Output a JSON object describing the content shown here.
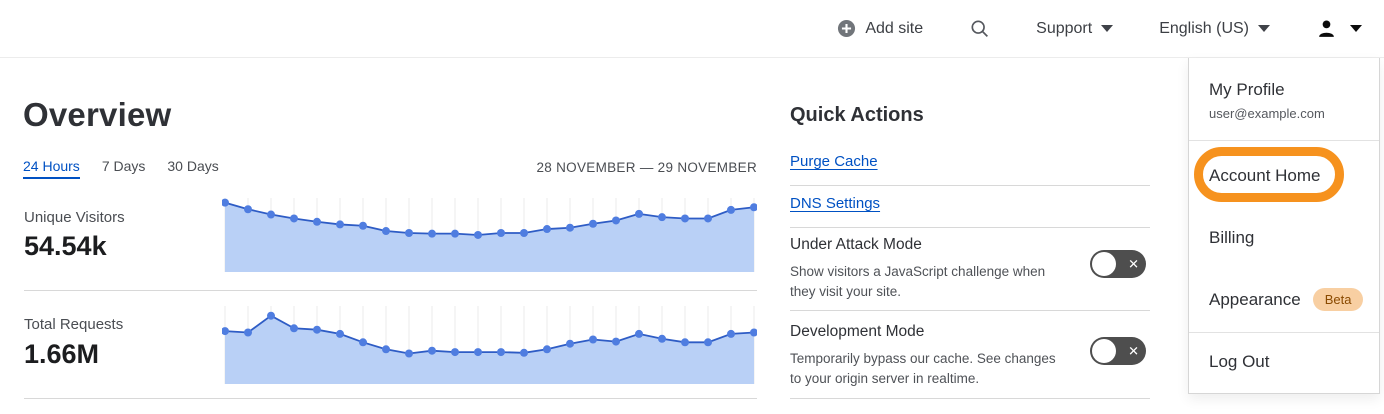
{
  "header": {
    "add_site": "Add site",
    "support": "Support",
    "language": "English (US)"
  },
  "overview": {
    "title": "Overview",
    "tabs": [
      {
        "label": "24 Hours",
        "active": true
      },
      {
        "label": "7 Days",
        "active": false
      },
      {
        "label": "30 Days",
        "active": false
      }
    ],
    "date_range": "28 NOVEMBER — 29 NOVEMBER",
    "metrics": [
      {
        "label": "Unique Visitors",
        "value": "54.54k"
      },
      {
        "label": "Total Requests",
        "value": "1.66M"
      }
    ]
  },
  "chart_data": [
    {
      "type": "area",
      "title": "Unique Visitors — 24 Hours",
      "series_label": "Unique Visitors",
      "summary_value": "54.54k",
      "x_axis": "24 hourly points, 28 November — 29 November (ticks hidden)",
      "y_axis": "hidden sparkline, relative scale 0-100",
      "values": [
        96,
        86,
        78,
        72,
        67,
        63,
        61,
        53,
        50,
        49,
        49,
        47,
        50,
        50,
        56,
        58,
        64,
        69,
        79,
        74,
        72,
        72,
        85,
        89
      ],
      "grid": "vertical-only",
      "legend": "none",
      "colors": {
        "fill": "#b9d0f6",
        "line": "#2e5cc5",
        "points": "#4f7de0",
        "grid": "#ebebeb"
      }
    },
    {
      "type": "area",
      "title": "Total Requests — 24 Hours",
      "series_label": "Total Requests",
      "summary_value": "1.66M",
      "x_axis": "24 hourly points, 28 November — 29 November (ticks hidden)",
      "y_axis": "hidden sparkline, relative scale 0-100",
      "values": [
        67,
        65,
        89,
        71,
        69,
        63,
        51,
        41,
        35,
        39,
        37,
        37,
        37,
        36,
        41,
        49,
        55,
        52,
        63,
        56,
        51,
        51,
        63,
        65
      ],
      "grid": "vertical-only",
      "legend": "none",
      "colors": {
        "fill": "#b9d0f6",
        "line": "#2e5cc5",
        "points": "#4f7de0",
        "grid": "#ebebeb"
      }
    }
  ],
  "quick_actions": {
    "title": "Quick Actions",
    "links": [
      {
        "label": "Purge Cache"
      },
      {
        "label": "DNS Settings"
      }
    ],
    "toggles": [
      {
        "label": "Under Attack Mode",
        "description": "Show visitors a JavaScript challenge when they visit your site.",
        "enabled": false
      },
      {
        "label": "Development Mode",
        "description": "Temporarily bypass our cache. See changes to your origin server in realtime.",
        "enabled": false
      }
    ]
  },
  "account_menu": {
    "profile_label": "My Profile",
    "profile_email": "user@example.com",
    "items": [
      {
        "label": "Account Home"
      },
      {
        "label": "Billing"
      },
      {
        "label": "Appearance",
        "badge": "Beta"
      },
      {
        "label": "Log Out"
      }
    ]
  },
  "annotation": {
    "shape": "rounded-rectangle-ring",
    "color": "#f6921e",
    "highlights": "Account Home"
  }
}
